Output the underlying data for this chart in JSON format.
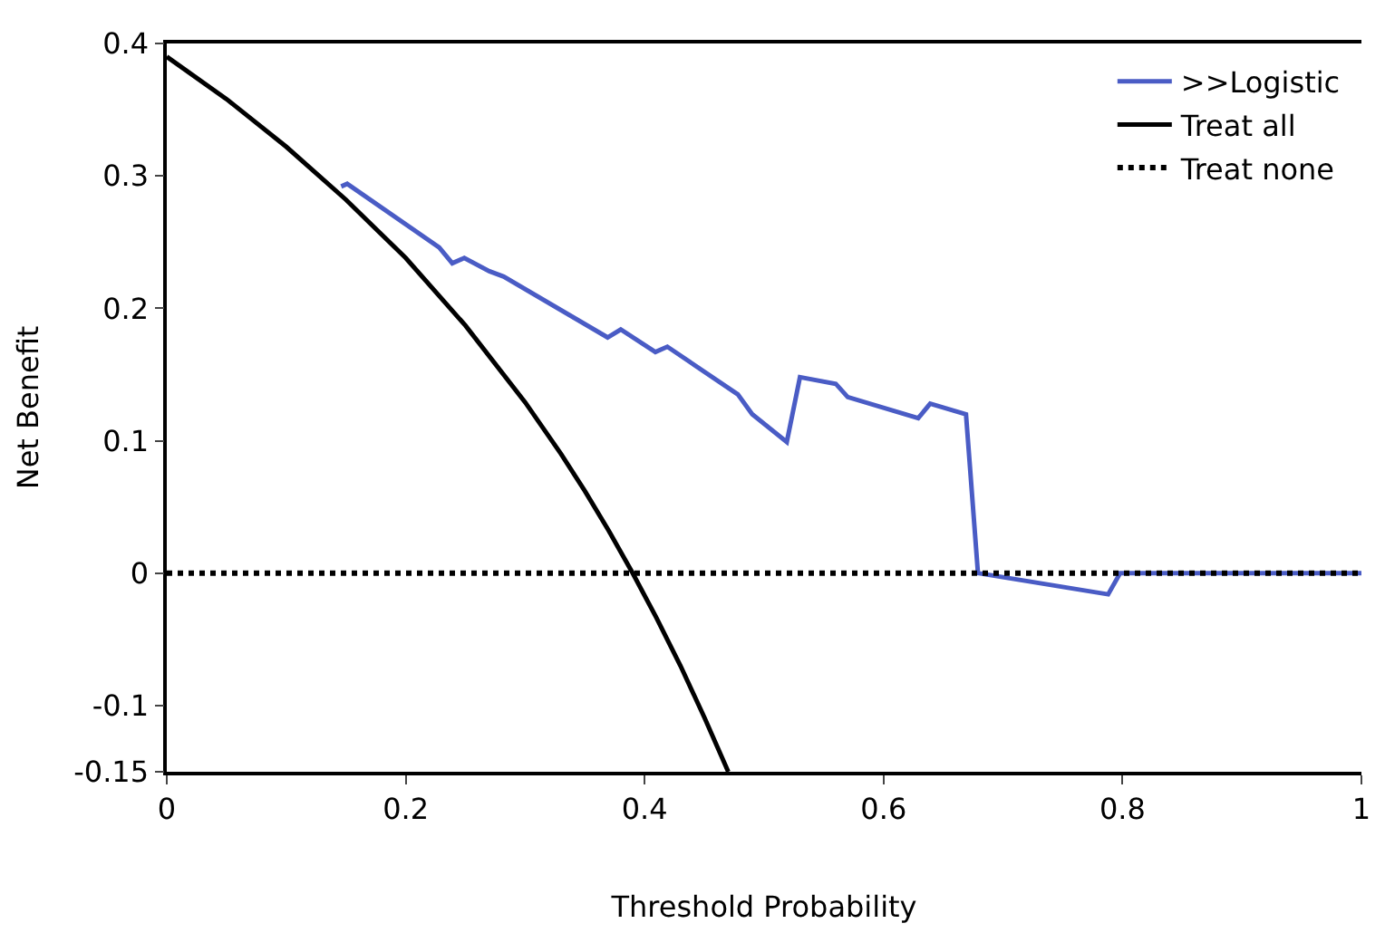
{
  "chart_data": {
    "type": "line",
    "xlabel": "Threshold Probability",
    "ylabel": "Net Benefit",
    "xlim": [
      0,
      1
    ],
    "ylim": [
      -0.15,
      0.4
    ],
    "xticks": [
      0,
      0.2,
      0.4,
      0.6,
      0.8,
      1
    ],
    "yticks": [
      -0.15,
      -0.1,
      0,
      0.1,
      0.2,
      0.3,
      0.4
    ],
    "legend": "top right",
    "marker": "none",
    "series": [
      {
        "name": ">>Logistic",
        "color": "#4a5cc5",
        "line_style": "solid",
        "x": [
          0.146,
          0.151,
          0.228,
          0.239,
          0.249,
          0.27,
          0.282,
          0.369,
          0.38,
          0.409,
          0.419,
          0.478,
          0.49,
          0.519,
          0.53,
          0.56,
          0.57,
          0.629,
          0.639,
          0.669,
          0.679,
          0.788,
          0.798,
          1
        ],
        "values": [
          0.292,
          0.294,
          0.246,
          0.234,
          0.238,
          0.228,
          0.224,
          0.178,
          0.184,
          0.167,
          0.171,
          0.135,
          0.12,
          0.099,
          0.148,
          0.143,
          0.133,
          0.117,
          0.128,
          0.12,
          0,
          -0.016,
          0,
          0
        ]
      },
      {
        "name": "Treat all",
        "color": "#000000",
        "line_style": "solid",
        "x": [
          0,
          0.05,
          0.1,
          0.15,
          0.2,
          0.25,
          0.3,
          0.33,
          0.35,
          0.37,
          0.39,
          0.41,
          0.43,
          0.45,
          0.47
        ],
        "values": [
          0.39,
          0.358,
          0.322,
          0.282,
          0.238,
          0.187,
          0.129,
          0.09,
          0.062,
          0.032,
          0,
          -0.034,
          -0.07,
          -0.109,
          -0.15
        ]
      },
      {
        "name": "Treat none",
        "color": "#000000",
        "line_style": "dotted",
        "x": [
          0,
          1
        ],
        "values": [
          0,
          0
        ]
      }
    ]
  }
}
